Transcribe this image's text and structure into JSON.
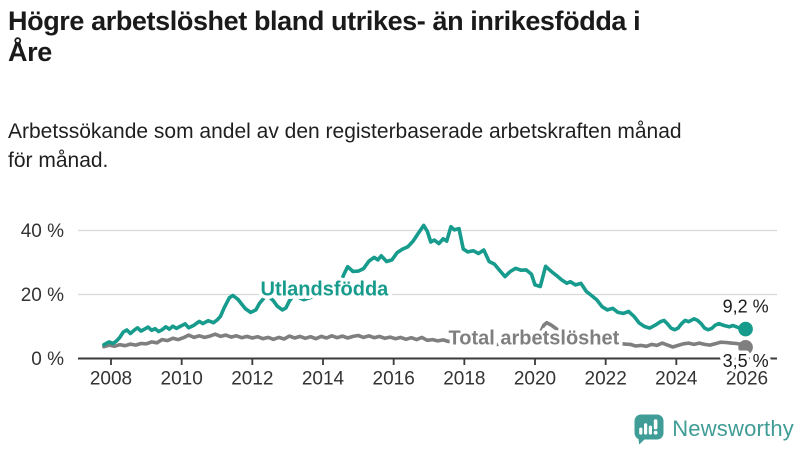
{
  "header": {
    "title_lines": [
      "Högre arbetslöshet bland utrikes- än inrikesfödda i",
      "Åre"
    ],
    "subtitle_lines": [
      "Arbetssökande som andel av den registerbaserade arbetskraften månad",
      "för månad."
    ]
  },
  "chart_data": {
    "type": "line",
    "title": "Högre arbetslöshet bland utrikes- än inrikesfödda i Åre",
    "subtitle": "Arbetssökande som andel av den registerbaserade arbetskraften månad för månad.",
    "xlabel": "",
    "ylabel": "",
    "x_axis": {
      "range": [
        2007.8,
        2026.6
      ],
      "ticks": [
        2008,
        2010,
        2012,
        2014,
        2016,
        2018,
        2020,
        2022,
        2024,
        2026
      ]
    },
    "y_axis": {
      "range": [
        0,
        44
      ],
      "ticks": [
        {
          "value": 0,
          "label": "0 %"
        },
        {
          "value": 20,
          "label": "20 %"
        },
        {
          "value": 40,
          "label": "40 %"
        }
      ],
      "gridlines": [
        20,
        40
      ],
      "grid": true
    },
    "legend_position": "inline-labels",
    "colors": {
      "utlandsfodda": "#169b8c",
      "total": "#7f7f7f",
      "grid": "#d9d9d9",
      "axis": "#3a3a3a",
      "tick_text": "#333333",
      "end_label_text": "#1a1a1a"
    },
    "series": [
      {
        "name": "Utlandsfödda",
        "color": "#169b8c",
        "end_label": "9,2 %",
        "end_value": 9.2,
        "label_pos": {
          "year": 2014.04,
          "pct": 21.9
        },
        "points": [
          [
            2007.8,
            4.3
          ],
          [
            2007.95,
            5.2
          ],
          [
            2008.05,
            4.7
          ],
          [
            2008.15,
            5.4
          ],
          [
            2008.25,
            6.6
          ],
          [
            2008.35,
            8.3
          ],
          [
            2008.45,
            8.9
          ],
          [
            2008.55,
            7.8
          ],
          [
            2008.65,
            8.8
          ],
          [
            2008.75,
            9.6
          ],
          [
            2008.85,
            8.6
          ],
          [
            2008.95,
            9.2
          ],
          [
            2009.05,
            9.8
          ],
          [
            2009.15,
            8.8
          ],
          [
            2009.25,
            9.3
          ],
          [
            2009.35,
            8.4
          ],
          [
            2009.45,
            9.0
          ],
          [
            2009.55,
            9.9
          ],
          [
            2009.65,
            9.2
          ],
          [
            2009.75,
            10.1
          ],
          [
            2009.85,
            9.4
          ],
          [
            2009.95,
            10.0
          ],
          [
            2010.1,
            10.8
          ],
          [
            2010.2,
            9.6
          ],
          [
            2010.35,
            10.4
          ],
          [
            2010.5,
            11.6
          ],
          [
            2010.6,
            10.9
          ],
          [
            2010.75,
            11.8
          ],
          [
            2010.9,
            11.2
          ],
          [
            2011.0,
            12.0
          ],
          [
            2011.1,
            13.2
          ],
          [
            2011.2,
            15.8
          ],
          [
            2011.35,
            19.0
          ],
          [
            2011.45,
            19.7
          ],
          [
            2011.6,
            18.4
          ],
          [
            2011.7,
            17.0
          ],
          [
            2011.8,
            15.6
          ],
          [
            2011.95,
            14.4
          ],
          [
            2012.1,
            15.2
          ],
          [
            2012.2,
            17.2
          ],
          [
            2012.35,
            19.2
          ],
          [
            2012.45,
            19.6
          ],
          [
            2012.6,
            18.0
          ],
          [
            2012.7,
            16.4
          ],
          [
            2012.85,
            15.2
          ],
          [
            2012.95,
            15.8
          ],
          [
            2013.05,
            18.0
          ],
          [
            2013.15,
            19.4
          ],
          [
            2013.3,
            19.2
          ],
          [
            2013.45,
            18.4
          ],
          [
            2013.6,
            18.9
          ],
          [
            2013.75,
            19.4
          ],
          [
            2013.9,
            19.7
          ],
          [
            2014.0,
            20.0
          ],
          [
            2014.1,
            20.9
          ],
          [
            2014.2,
            22.8
          ],
          [
            2014.35,
            21.9
          ],
          [
            2014.5,
            23.9
          ],
          [
            2014.6,
            26.5
          ],
          [
            2014.7,
            28.7
          ],
          [
            2014.85,
            27.2
          ],
          [
            2015.0,
            27.3
          ],
          [
            2015.15,
            28.1
          ],
          [
            2015.3,
            30.4
          ],
          [
            2015.45,
            31.6
          ],
          [
            2015.55,
            30.8
          ],
          [
            2015.65,
            32.1
          ],
          [
            2015.8,
            30.3
          ],
          [
            2015.95,
            30.8
          ],
          [
            2016.1,
            33.1
          ],
          [
            2016.25,
            34.2
          ],
          [
            2016.4,
            34.9
          ],
          [
            2016.55,
            36.7
          ],
          [
            2016.7,
            39.2
          ],
          [
            2016.85,
            41.6
          ],
          [
            2016.95,
            39.8
          ],
          [
            2017.05,
            36.4
          ],
          [
            2017.15,
            37.0
          ],
          [
            2017.28,
            35.9
          ],
          [
            2017.4,
            37.4
          ],
          [
            2017.5,
            36.7
          ],
          [
            2017.62,
            41.2
          ],
          [
            2017.72,
            40.2
          ],
          [
            2017.85,
            40.6
          ],
          [
            2017.97,
            34.2
          ],
          [
            2018.1,
            33.3
          ],
          [
            2018.25,
            33.7
          ],
          [
            2018.4,
            32.8
          ],
          [
            2018.55,
            33.9
          ],
          [
            2018.7,
            30.3
          ],
          [
            2018.85,
            29.5
          ],
          [
            2019.0,
            27.5
          ],
          [
            2019.15,
            25.6
          ],
          [
            2019.3,
            27.2
          ],
          [
            2019.45,
            28.2
          ],
          [
            2019.6,
            27.6
          ],
          [
            2019.75,
            27.7
          ],
          [
            2019.9,
            26.3
          ],
          [
            2020.0,
            23.0
          ],
          [
            2020.15,
            22.5
          ],
          [
            2020.3,
            28.8
          ],
          [
            2020.45,
            27.3
          ],
          [
            2020.6,
            26.0
          ],
          [
            2020.75,
            24.6
          ],
          [
            2020.9,
            23.5
          ],
          [
            2021.0,
            24.0
          ],
          [
            2021.15,
            23.0
          ],
          [
            2021.3,
            23.5
          ],
          [
            2021.45,
            21.0
          ],
          [
            2021.6,
            19.7
          ],
          [
            2021.75,
            18.3
          ],
          [
            2021.9,
            16.2
          ],
          [
            2022.05,
            15.2
          ],
          [
            2022.2,
            15.7
          ],
          [
            2022.35,
            14.4
          ],
          [
            2022.5,
            14.1
          ],
          [
            2022.65,
            14.7
          ],
          [
            2022.8,
            13.2
          ],
          [
            2022.95,
            11.1
          ],
          [
            2023.1,
            10.0
          ],
          [
            2023.25,
            9.5
          ],
          [
            2023.4,
            10.4
          ],
          [
            2023.55,
            11.5
          ],
          [
            2023.65,
            11.9
          ],
          [
            2023.75,
            10.8
          ],
          [
            2023.85,
            9.5
          ],
          [
            2023.95,
            9.0
          ],
          [
            2024.05,
            9.5
          ],
          [
            2024.15,
            10.9
          ],
          [
            2024.25,
            11.9
          ],
          [
            2024.35,
            11.5
          ],
          [
            2024.5,
            12.4
          ],
          [
            2024.6,
            11.9
          ],
          [
            2024.7,
            10.9
          ],
          [
            2024.8,
            9.5
          ],
          [
            2024.9,
            9.0
          ],
          [
            2025.0,
            9.4
          ],
          [
            2025.1,
            10.4
          ],
          [
            2025.2,
            10.9
          ],
          [
            2025.35,
            10.3
          ],
          [
            2025.5,
            9.9
          ],
          [
            2025.6,
            10.3
          ],
          [
            2025.7,
            9.9
          ],
          [
            2025.8,
            9.4
          ],
          [
            2025.96,
            9.2
          ]
        ]
      },
      {
        "name": "Total arbetslöshet",
        "color": "#7f7f7f",
        "end_label": "3,5 %",
        "end_value": 3.5,
        "label_pos": {
          "year": 2019.97,
          "pct": 6.6
        },
        "points": [
          [
            2007.8,
            3.7
          ],
          [
            2007.95,
            4.2
          ],
          [
            2008.1,
            3.8
          ],
          [
            2008.25,
            4.3
          ],
          [
            2008.4,
            4.0
          ],
          [
            2008.55,
            4.5
          ],
          [
            2008.7,
            4.2
          ],
          [
            2008.85,
            4.7
          ],
          [
            2009.0,
            4.6
          ],
          [
            2009.15,
            5.2
          ],
          [
            2009.3,
            4.9
          ],
          [
            2009.45,
            5.9
          ],
          [
            2009.6,
            5.6
          ],
          [
            2009.75,
            6.3
          ],
          [
            2009.9,
            5.9
          ],
          [
            2010.05,
            6.5
          ],
          [
            2010.2,
            7.3
          ],
          [
            2010.35,
            6.6
          ],
          [
            2010.5,
            7.1
          ],
          [
            2010.65,
            6.6
          ],
          [
            2010.8,
            7.0
          ],
          [
            2010.95,
            7.6
          ],
          [
            2011.1,
            6.9
          ],
          [
            2011.25,
            7.3
          ],
          [
            2011.4,
            6.7
          ],
          [
            2011.55,
            7.1
          ],
          [
            2011.7,
            6.5
          ],
          [
            2011.85,
            6.9
          ],
          [
            2012.0,
            6.4
          ],
          [
            2012.15,
            6.8
          ],
          [
            2012.3,
            6.2
          ],
          [
            2012.45,
            6.6
          ],
          [
            2012.6,
            6.0
          ],
          [
            2012.75,
            6.6
          ],
          [
            2012.9,
            6.1
          ],
          [
            2013.05,
            7.0
          ],
          [
            2013.2,
            6.4
          ],
          [
            2013.35,
            6.9
          ],
          [
            2013.5,
            6.3
          ],
          [
            2013.65,
            6.8
          ],
          [
            2013.8,
            6.2
          ],
          [
            2013.95,
            6.9
          ],
          [
            2014.1,
            6.4
          ],
          [
            2014.25,
            7.1
          ],
          [
            2014.4,
            6.5
          ],
          [
            2014.55,
            7.0
          ],
          [
            2014.7,
            6.4
          ],
          [
            2014.85,
            6.9
          ],
          [
            2015.0,
            7.2
          ],
          [
            2015.15,
            6.6
          ],
          [
            2015.3,
            7.1
          ],
          [
            2015.45,
            6.5
          ],
          [
            2015.6,
            6.9
          ],
          [
            2015.75,
            6.3
          ],
          [
            2015.9,
            6.7
          ],
          [
            2016.05,
            6.2
          ],
          [
            2016.2,
            6.6
          ],
          [
            2016.35,
            6.0
          ],
          [
            2016.5,
            6.5
          ],
          [
            2016.65,
            5.9
          ],
          [
            2016.8,
            6.6
          ],
          [
            2016.95,
            5.7
          ],
          [
            2017.1,
            5.9
          ],
          [
            2017.25,
            5.5
          ],
          [
            2017.4,
            5.8
          ],
          [
            2017.55,
            5.3
          ],
          [
            2017.7,
            5.6
          ],
          [
            2017.85,
            5.1
          ],
          [
            2018.0,
            5.3
          ],
          [
            2018.15,
            4.9
          ],
          [
            2018.3,
            5.1
          ],
          [
            2018.45,
            4.6
          ],
          [
            2018.6,
            4.4
          ],
          [
            2018.75,
            4.1
          ],
          [
            2018.9,
            4.4
          ],
          [
            2019.05,
            4.6
          ],
          [
            2019.2,
            4.4
          ],
          [
            2019.35,
            4.7
          ],
          [
            2019.5,
            4.5
          ],
          [
            2019.65,
            4.8
          ],
          [
            2019.8,
            4.6
          ],
          [
            2019.95,
            5.0
          ],
          [
            2020.1,
            6.8
          ],
          [
            2020.25,
            10.4
          ],
          [
            2020.33,
            11.2
          ],
          [
            2020.45,
            10.5
          ],
          [
            2020.6,
            9.3
          ],
          [
            2020.75,
            8.1
          ],
          [
            2020.9,
            6.8
          ],
          [
            2021.05,
            6.4
          ],
          [
            2021.2,
            6.1
          ],
          [
            2021.35,
            5.8
          ],
          [
            2021.5,
            5.4
          ],
          [
            2021.65,
            5.2
          ],
          [
            2021.8,
            4.9
          ],
          [
            2021.95,
            4.8
          ],
          [
            2022.1,
            4.6
          ],
          [
            2022.25,
            4.5
          ],
          [
            2022.4,
            4.7
          ],
          [
            2022.55,
            4.5
          ],
          [
            2022.7,
            4.4
          ],
          [
            2022.85,
            3.9
          ],
          [
            2023.0,
            4.1
          ],
          [
            2023.15,
            3.8
          ],
          [
            2023.3,
            4.4
          ],
          [
            2023.45,
            4.1
          ],
          [
            2023.6,
            4.8
          ],
          [
            2023.75,
            4.2
          ],
          [
            2023.9,
            3.6
          ],
          [
            2024.05,
            4.1
          ],
          [
            2024.2,
            4.6
          ],
          [
            2024.35,
            4.8
          ],
          [
            2024.5,
            4.4
          ],
          [
            2024.65,
            4.8
          ],
          [
            2024.8,
            4.4
          ],
          [
            2024.95,
            4.2
          ],
          [
            2025.1,
            4.6
          ],
          [
            2025.25,
            5.1
          ],
          [
            2025.4,
            5.0
          ],
          [
            2025.55,
            4.8
          ],
          [
            2025.7,
            4.7
          ],
          [
            2025.85,
            4.4
          ],
          [
            2025.96,
            3.5
          ]
        ]
      }
    ]
  },
  "footer": {
    "brand": "Newsworthy",
    "brand_color": "#3f9c96",
    "logo_icon": "chart-speech-bubble-icon"
  }
}
